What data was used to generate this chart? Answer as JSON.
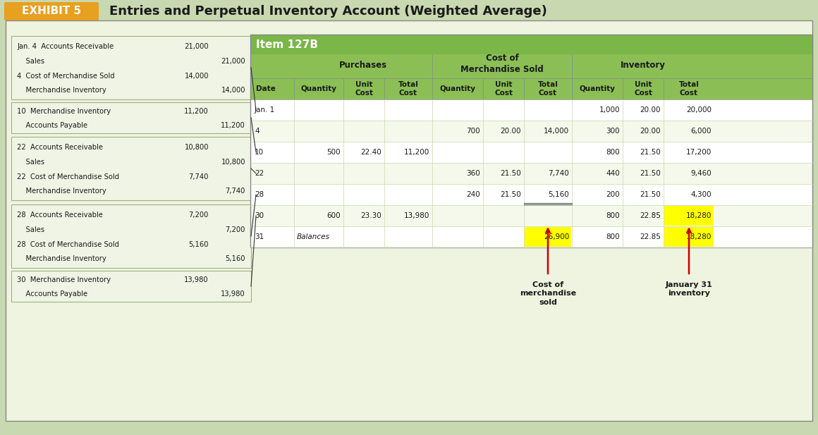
{
  "title": "Entries and Perpetual Inventory Account (Weighted Average)",
  "exhibit_label": "EXHIBIT 5",
  "exhibit_bg": "#E8A020",
  "exhibit_text_color": "#FFFFFF",
  "main_bg": "#E8F0D8",
  "header_green": "#5A9E4A",
  "table_title": "Item 127B",
  "fig_bg": "#D8E8C8",
  "journal_entries": [
    {
      "lines": [
        {
          "indent": 0,
          "label": "Jan. 4  Accounts Receivable",
          "debit": "21,000",
          "credit": ""
        },
        {
          "indent": 1,
          "label": "Sales",
          "debit": "",
          "credit": "21,000"
        },
        {
          "indent": 0,
          "label": "4  Cost of Merchandise Sold",
          "debit": "14,000",
          "credit": ""
        },
        {
          "indent": 1,
          "label": "Merchandise Inventory",
          "debit": "",
          "credit": "14,000"
        }
      ]
    },
    {
      "lines": [
        {
          "indent": 0,
          "label": "10  Merchandise Inventory",
          "debit": "11,200",
          "credit": ""
        },
        {
          "indent": 1,
          "label": "Accounts Payable",
          "debit": "",
          "credit": "11,200"
        }
      ]
    },
    {
      "lines": [
        {
          "indent": 0,
          "label": "22  Accounts Receivable",
          "debit": "10,800",
          "credit": ""
        },
        {
          "indent": 1,
          "label": "Sales",
          "debit": "",
          "credit": "10,800"
        },
        {
          "indent": 0,
          "label": "22  Cost of Merchandise Sold",
          "debit": "7,740",
          "credit": ""
        },
        {
          "indent": 1,
          "label": "Merchandise Inventory",
          "debit": "",
          "credit": "7,740"
        }
      ]
    },
    {
      "lines": [
        {
          "indent": 0,
          "label": "28  Accounts Receivable",
          "debit": "7,200",
          "credit": ""
        },
        {
          "indent": 1,
          "label": "Sales",
          "debit": "",
          "credit": "7,200"
        },
        {
          "indent": 0,
          "label": "28  Cost of Merchandise Sold",
          "debit": "5,160",
          "credit": ""
        },
        {
          "indent": 1,
          "label": "Merchandise Inventory",
          "debit": "",
          "credit": "5,160"
        }
      ]
    },
    {
      "lines": [
        {
          "indent": 0,
          "label": "30  Merchandise Inventory",
          "debit": "13,980",
          "credit": ""
        },
        {
          "indent": 1,
          "label": "Accounts Payable",
          "debit": "",
          "credit": "13,980"
        }
      ]
    }
  ],
  "table_headers_row1": [
    "",
    "Purchases",
    "",
    "",
    "Cost of\nMerchandise Sold",
    "",
    "",
    "Inventory",
    "",
    ""
  ],
  "table_headers_row2": [
    "Date",
    "Quantity",
    "Unit\nCost",
    "Total\nCost",
    "Quantity",
    "Unit\nCost",
    "Total\nCost",
    "Quantity",
    "Unit\nCost",
    "Total\nCost"
  ],
  "table_rows": [
    {
      "date": "Jan. 1",
      "pq": "",
      "puc": "",
      "ptc": "",
      "cq": "",
      "cuc": "",
      "ctc": "",
      "iq": "1,000",
      "iuc": "20.00",
      "itc": "20,000",
      "highlight_ctc": false,
      "highlight_itc": false
    },
    {
      "date": "4",
      "pq": "",
      "puc": "",
      "ptc": "",
      "cq": "700",
      "cuc": "20.00",
      "ctc": "14,000",
      "iq": "300",
      "iuc": "20.00",
      "itc": "6,000",
      "highlight_ctc": false,
      "highlight_itc": false
    },
    {
      "date": "10",
      "pq": "500",
      "puc": "22.40",
      "ptc": "11,200",
      "cq": "",
      "cuc": "",
      "ctc": "",
      "iq": "800",
      "iuc": "21.50",
      "itc": "17,200",
      "highlight_ctc": false,
      "highlight_itc": false
    },
    {
      "date": "22",
      "pq": "",
      "puc": "",
      "ptc": "",
      "cq": "360",
      "cuc": "21.50",
      "ctc": "7,740",
      "iq": "440",
      "iuc": "21.50",
      "itc": "9,460",
      "highlight_ctc": false,
      "highlight_itc": false
    },
    {
      "date": "28",
      "pq": "",
      "puc": "",
      "ptc": "",
      "cq": "240",
      "cuc": "21.50",
      "ctc": "5,160",
      "iq": "200",
      "iuc": "21.50",
      "itc": "4,300",
      "highlight_ctc": false,
      "highlight_itc": false
    },
    {
      "date": "30",
      "pq": "600",
      "puc": "23.30",
      "ptc": "13,980",
      "cq": "",
      "cuc": "",
      "ctc": "",
      "iq": "800",
      "iuc": "22.85",
      "itc": "18,280",
      "highlight_ctc": false,
      "highlight_itc": true
    },
    {
      "date": "31",
      "pq": "Balances",
      "puc": "",
      "ptc": "",
      "cq": "",
      "cuc": "",
      "ctc": "26,900",
      "iq": "800",
      "iuc": "22.85",
      "itc": "18,280",
      "highlight_ctc": true,
      "highlight_itc": true
    }
  ],
  "arrow1_label": "Cost of\nmerchandise\nsold",
  "arrow2_label": "January 31\ninventory",
  "colors": {
    "outer_bg": "#C8D8B0",
    "inner_bg": "#EEF4E0",
    "journal_box_bg": "#F0F4E4",
    "journal_box_border": "#A0B080",
    "table_header_bg": "#7AB648",
    "table_subheader_bg": "#A8CC70",
    "table_row_alt1": "#FFFFFF",
    "table_row_alt2": "#F0F5E0",
    "cell_border": "#B0C090",
    "highlight_yellow": "#FFFF00",
    "arrow_color": "#CC0000",
    "text_dark": "#1A1A1A",
    "text_bold": "#000000"
  }
}
